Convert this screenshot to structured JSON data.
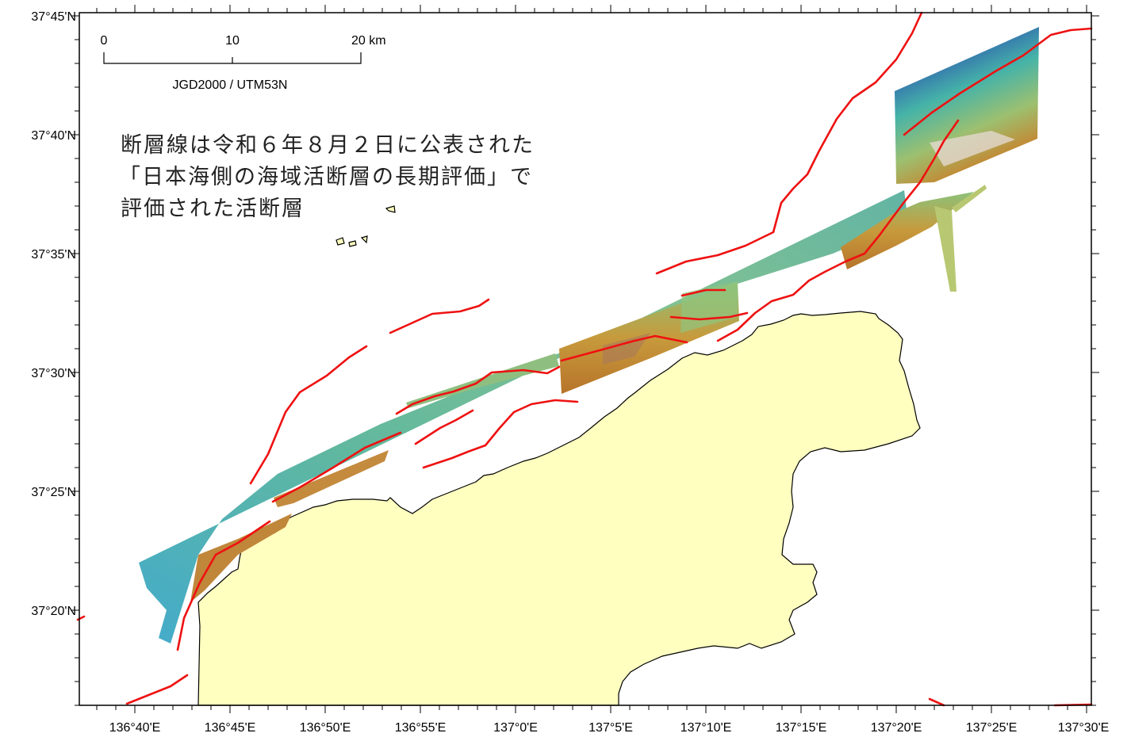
{
  "map": {
    "lat_labels": [
      "37°45'N",
      "37°40'N",
      "37°35'N",
      "37°30'N",
      "37°25'N",
      "37°20'N"
    ],
    "lon_labels": [
      "136°40'E",
      "136°45'E",
      "136°50'E",
      "136°55'E",
      "137°0'E",
      "137°5'E",
      "137°10'E",
      "137°15'E",
      "137°20'E",
      "137°25'E",
      "137°30'E"
    ],
    "scale_bar": {
      "ticks": [
        "0",
        "10",
        "20 km"
      ],
      "projection": "JGD2000 / UTM53N"
    },
    "annotation": {
      "lines": [
        "断層線は令和６年８月２日に公表された",
        "「日本海側の海域活断層の長期評価」で",
        "評価された活断層"
      ]
    },
    "colors": {
      "land": "#ffffc0",
      "fault": "#ee1111",
      "bathymetry_deep": "#1a2a80",
      "bathymetry_mid": "#46b3a8",
      "bathymetry_shallow": "#c9802a"
    }
  }
}
